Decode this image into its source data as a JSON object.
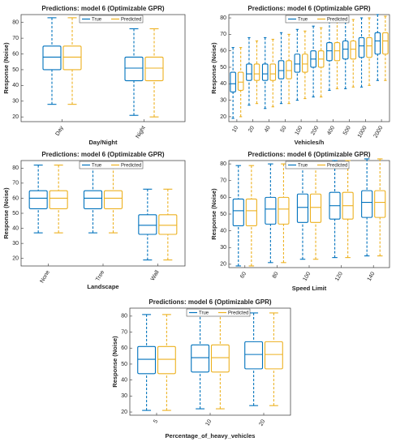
{
  "chart_data": [
    {
      "type": "box",
      "title": "Predictions: model 6 (Optimizable GPR)",
      "x_label": "Day/Night",
      "y_label": "Response (Noise)",
      "categories": [
        "Day",
        "Night"
      ],
      "ylim": [
        17,
        85
      ],
      "yticks": [
        20,
        30,
        40,
        50,
        60,
        70,
        80
      ],
      "series": [
        {
          "name": "True",
          "color": "#0072BD",
          "values": [
            [
              28,
              50,
              58,
              65,
              83
            ],
            [
              21,
              43,
              51,
              58,
              76
            ]
          ]
        },
        {
          "name": "Predicted",
          "color": "#EDB120",
          "values": [
            [
              28,
              50,
              58,
              65,
              83
            ],
            [
              20,
              43,
              51,
              58,
              76
            ]
          ]
        }
      ]
    },
    {
      "type": "box",
      "title": "Predictions: model 6 (Optimizable GPR)",
      "x_label": "Vehicles/h",
      "y_label": "Response (Noise)",
      "categories": [
        "10",
        "20",
        "40",
        "50",
        "100",
        "200",
        "400",
        "500",
        "1000",
        "2000"
      ],
      "ylim": [
        17,
        82
      ],
      "yticks": [
        20,
        30,
        40,
        50,
        60,
        70,
        80
      ],
      "series": [
        {
          "name": "True",
          "color": "#0072BD",
          "values": [
            [
              19,
              35,
              40,
              47,
              62
            ],
            [
              27,
              42,
              46,
              52,
              68
            ],
            [
              25,
              42,
              46,
              52,
              68
            ],
            [
              28,
              43,
              48,
              54,
              71
            ],
            [
              30,
              47,
              52,
              58,
              73
            ],
            [
              32,
              50,
              55,
              60,
              75
            ],
            [
              36,
              54,
              60,
              65,
              78
            ],
            [
              37,
              55,
              61,
              66,
              80
            ],
            [
              38,
              56,
              63,
              68,
              80
            ],
            [
              42,
              58,
              66,
              71,
              82
            ]
          ]
        },
        {
          "name": "Predicted",
          "color": "#EDB120",
          "values": [
            [
              20,
              36,
              41,
              47,
              62
            ],
            [
              28,
              42,
              46,
              52,
              66
            ],
            [
              26,
              42,
              46,
              52,
              67
            ],
            [
              28,
              43,
              48,
              54,
              70
            ],
            [
              31,
              47,
              52,
              58,
              72
            ],
            [
              32,
              50,
              55,
              60,
              74
            ],
            [
              37,
              54,
              60,
              65,
              78
            ],
            [
              38,
              55,
              61,
              66,
              79
            ],
            [
              39,
              56,
              63,
              68,
              80
            ],
            [
              42,
              58,
              66,
              71,
              81
            ]
          ]
        }
      ]
    },
    {
      "type": "box",
      "title": "Predictions: model 6 (Optimizable GPR)",
      "x_label": "Landscape",
      "y_label": "Response (Noise)",
      "categories": [
        "None",
        "Tree",
        "Wall"
      ],
      "ylim": [
        15,
        85
      ],
      "yticks": [
        20,
        30,
        40,
        50,
        60,
        70,
        80
      ],
      "series": [
        {
          "name": "True",
          "color": "#0072BD",
          "values": [
            [
              37,
              53,
              60,
              65,
              82
            ],
            [
              37,
              53,
              60,
              65,
              81
            ],
            [
              19,
              36,
              42,
              49,
              66
            ]
          ]
        },
        {
          "name": "Predicted",
          "color": "#EDB120",
          "values": [
            [
              37,
              53,
              60,
              65,
              82
            ],
            [
              37,
              53,
              60,
              65,
              81
            ],
            [
              19,
              36,
              42,
              49,
              66
            ]
          ]
        }
      ]
    },
    {
      "type": "box",
      "title": "Predictions: model 6 (Optimizable GPR)",
      "x_label": "Speed Limit",
      "y_label": "Response (Noise)",
      "categories": [
        "60",
        "80",
        "100",
        "120",
        "140"
      ],
      "ylim": [
        18,
        82
      ],
      "yticks": [
        20,
        30,
        40,
        50,
        60,
        70,
        80
      ],
      "series": [
        {
          "name": "True",
          "color": "#0072BD",
          "values": [
            [
              19,
              43,
              52,
              59,
              79
            ],
            [
              21,
              44,
              53,
              60,
              80
            ],
            [
              23,
              45,
              54,
              62,
              81
            ],
            [
              24,
              47,
              55,
              63,
              82
            ],
            [
              25,
              48,
              57,
              64,
              83
            ]
          ]
        },
        {
          "name": "Predicted",
          "color": "#EDB120",
          "values": [
            [
              19,
              43,
              52,
              59,
              79
            ],
            [
              21,
              44,
              53,
              60,
              80
            ],
            [
              23,
              45,
              54,
              62,
              81
            ],
            [
              24,
              47,
              55,
              63,
              82
            ],
            [
              25,
              48,
              57,
              64,
              83
            ]
          ]
        }
      ]
    },
    {
      "type": "box",
      "title": "Predictions: model 6 (Optimizable GPR)",
      "x_label": "Percentage_of_heavy_vehicles",
      "y_label": "Response (Noise)",
      "categories": [
        "5",
        "10",
        "20"
      ],
      "ylim": [
        18,
        85
      ],
      "yticks": [
        20,
        30,
        40,
        50,
        60,
        70,
        80
      ],
      "series": [
        {
          "name": "True",
          "color": "#0072BD",
          "values": [
            [
              21,
              44,
              53,
              61,
              81
            ],
            [
              22,
              45,
              54,
              62,
              82
            ],
            [
              24,
              47,
              56,
              64,
              82
            ]
          ]
        },
        {
          "name": "Predicted",
          "color": "#EDB120",
          "values": [
            [
              21,
              44,
              53,
              61,
              81
            ],
            [
              22,
              45,
              54,
              62,
              82
            ],
            [
              24,
              47,
              56,
              64,
              82
            ]
          ]
        }
      ]
    }
  ]
}
